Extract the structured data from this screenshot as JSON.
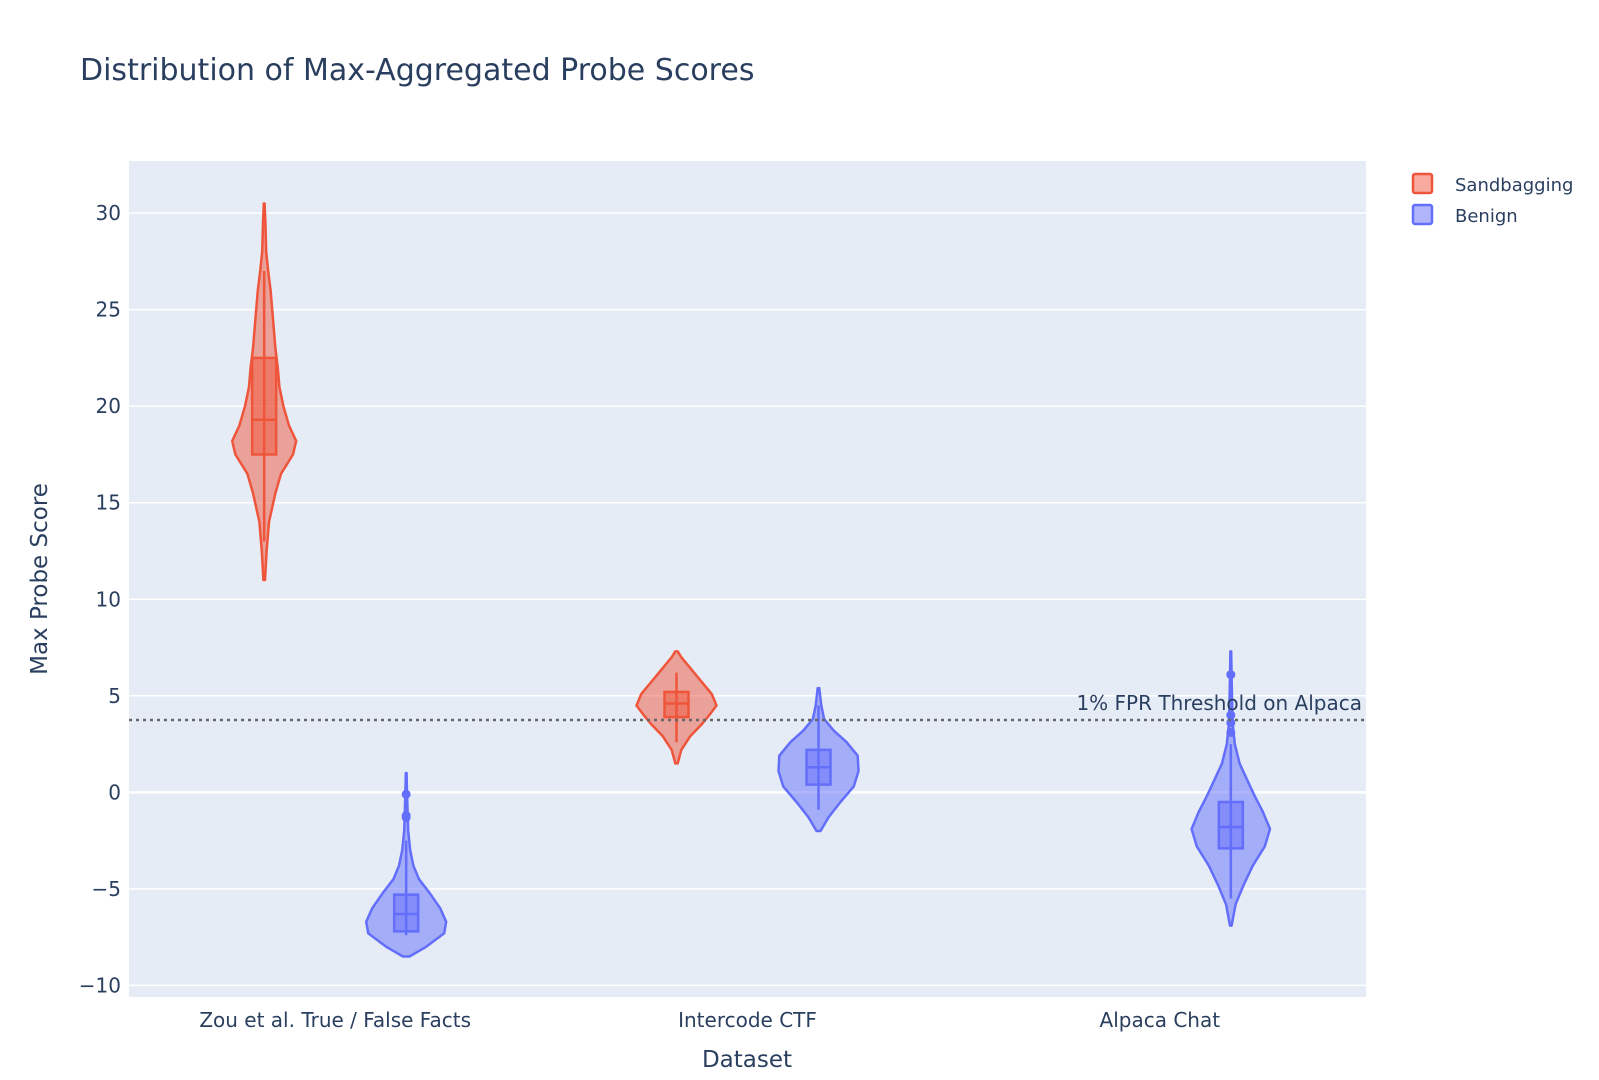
{
  "chart_data": {
    "type": "violin",
    "title": "Distribution of Max-Aggregated Probe Scores",
    "xlabel": "Dataset",
    "ylabel": "Max Probe Score",
    "ylim": [
      -10.6,
      32.7
    ],
    "yticks": [
      -10,
      -5,
      0,
      5,
      10,
      15,
      20,
      25,
      30
    ],
    "ytick_labels": [
      "−10",
      "−5",
      "0",
      "5",
      "10",
      "15",
      "20",
      "25",
      "30"
    ],
    "categories": [
      "Zou et al. True / False Facts",
      "Intercode CTF",
      "Alpaca Chat"
    ],
    "grid": true,
    "legend_position": "top-right",
    "threshold": {
      "value": 3.75,
      "label": "1% FPR Threshold on Alpaca",
      "style": "dotted"
    },
    "series": [
      {
        "name": "Sandbagging",
        "color": "#EF553B",
        "groups": [
          {
            "category": "Zou et al. True / False Facts",
            "min": 11.0,
            "q1": 17.5,
            "median": 19.3,
            "q3": 22.5,
            "max": 30.5,
            "whisker_low": 13.0,
            "whisker_high": 27.0,
            "outliers": [],
            "density": [
              [
                11.0,
                0.02
              ],
              [
                12.5,
                0.06
              ],
              [
                14.0,
                0.12
              ],
              [
                15.5,
                0.28
              ],
              [
                16.5,
                0.42
              ],
              [
                17.5,
                0.72
              ],
              [
                18.2,
                0.8
              ],
              [
                19.0,
                0.62
              ],
              [
                20.0,
                0.48
              ],
              [
                21.0,
                0.38
              ],
              [
                22.0,
                0.34
              ],
              [
                23.0,
                0.28
              ],
              [
                24.5,
                0.22
              ],
              [
                26.0,
                0.16
              ],
              [
                27.0,
                0.1
              ],
              [
                28.0,
                0.05
              ],
              [
                29.5,
                0.03
              ],
              [
                30.5,
                0.01
              ]
            ]
          },
          {
            "category": "Intercode CTF",
            "min": 1.5,
            "q1": 3.9,
            "median": 4.6,
            "q3": 5.2,
            "max": 7.3,
            "whisker_low": 2.6,
            "whisker_high": 6.2,
            "outliers": [],
            "density": [
              [
                1.5,
                0.03
              ],
              [
                2.2,
                0.12
              ],
              [
                2.9,
                0.34
              ],
              [
                3.5,
                0.62
              ],
              [
                4.0,
                0.82
              ],
              [
                4.5,
                1.0
              ],
              [
                5.1,
                0.88
              ],
              [
                5.8,
                0.6
              ],
              [
                6.4,
                0.36
              ],
              [
                7.0,
                0.12
              ],
              [
                7.3,
                0.03
              ]
            ]
          }
        ]
      },
      {
        "name": "Benign",
        "color": "#636EFA",
        "groups": [
          {
            "category": "Zou et al. True / False Facts",
            "min": -8.5,
            "q1": -7.2,
            "median": -6.3,
            "q3": -5.3,
            "max": 1.0,
            "whisker_low": -7.4,
            "whisker_high": -2.5,
            "outliers": [
              -0.1,
              -1.2,
              -1.3
            ],
            "density": [
              [
                -8.5,
                0.08
              ],
              [
                -8.0,
                0.5
              ],
              [
                -7.3,
                0.95
              ],
              [
                -6.7,
                1.0
              ],
              [
                -6.0,
                0.85
              ],
              [
                -5.2,
                0.58
              ],
              [
                -4.5,
                0.32
              ],
              [
                -3.8,
                0.18
              ],
              [
                -3.0,
                0.1
              ],
              [
                -2.0,
                0.05
              ],
              [
                -1.0,
                0.035
              ],
              [
                0.0,
                0.02
              ],
              [
                1.0,
                0.01
              ]
            ]
          },
          {
            "category": "Intercode CTF",
            "min": -2.0,
            "q1": 0.4,
            "median": 1.3,
            "q3": 2.2,
            "max": 5.4,
            "whisker_low": -0.9,
            "whisker_high": 4.5,
            "outliers": [],
            "density": [
              [
                -2.0,
                0.05
              ],
              [
                -1.3,
                0.25
              ],
              [
                -0.5,
                0.55
              ],
              [
                0.3,
                0.88
              ],
              [
                1.1,
                1.0
              ],
              [
                1.9,
                0.98
              ],
              [
                2.6,
                0.7
              ],
              [
                3.2,
                0.38
              ],
              [
                3.8,
                0.14
              ],
              [
                4.5,
                0.07
              ],
              [
                5.4,
                0.02
              ]
            ]
          },
          {
            "category": "Alpaca Chat",
            "min": -6.9,
            "q1": -2.9,
            "median": -1.8,
            "q3": -0.5,
            "max": 7.3,
            "whisker_low": -5.5,
            "whisker_high": 2.5,
            "outliers": [
              3.1,
              3.6,
              4.0,
              6.1
            ],
            "density": [
              [
                -6.9,
                0.02
              ],
              [
                -5.8,
                0.12
              ],
              [
                -4.8,
                0.32
              ],
              [
                -3.8,
                0.55
              ],
              [
                -2.8,
                0.85
              ],
              [
                -1.9,
                0.98
              ],
              [
                -1.0,
                0.8
              ],
              [
                -0.2,
                0.6
              ],
              [
                0.6,
                0.42
              ],
              [
                1.5,
                0.22
              ],
              [
                2.5,
                0.1
              ],
              [
                3.5,
                0.05
              ],
              [
                4.5,
                0.035
              ],
              [
                6.0,
                0.02
              ],
              [
                7.3,
                0.01
              ]
            ]
          }
        ]
      }
    ]
  }
}
